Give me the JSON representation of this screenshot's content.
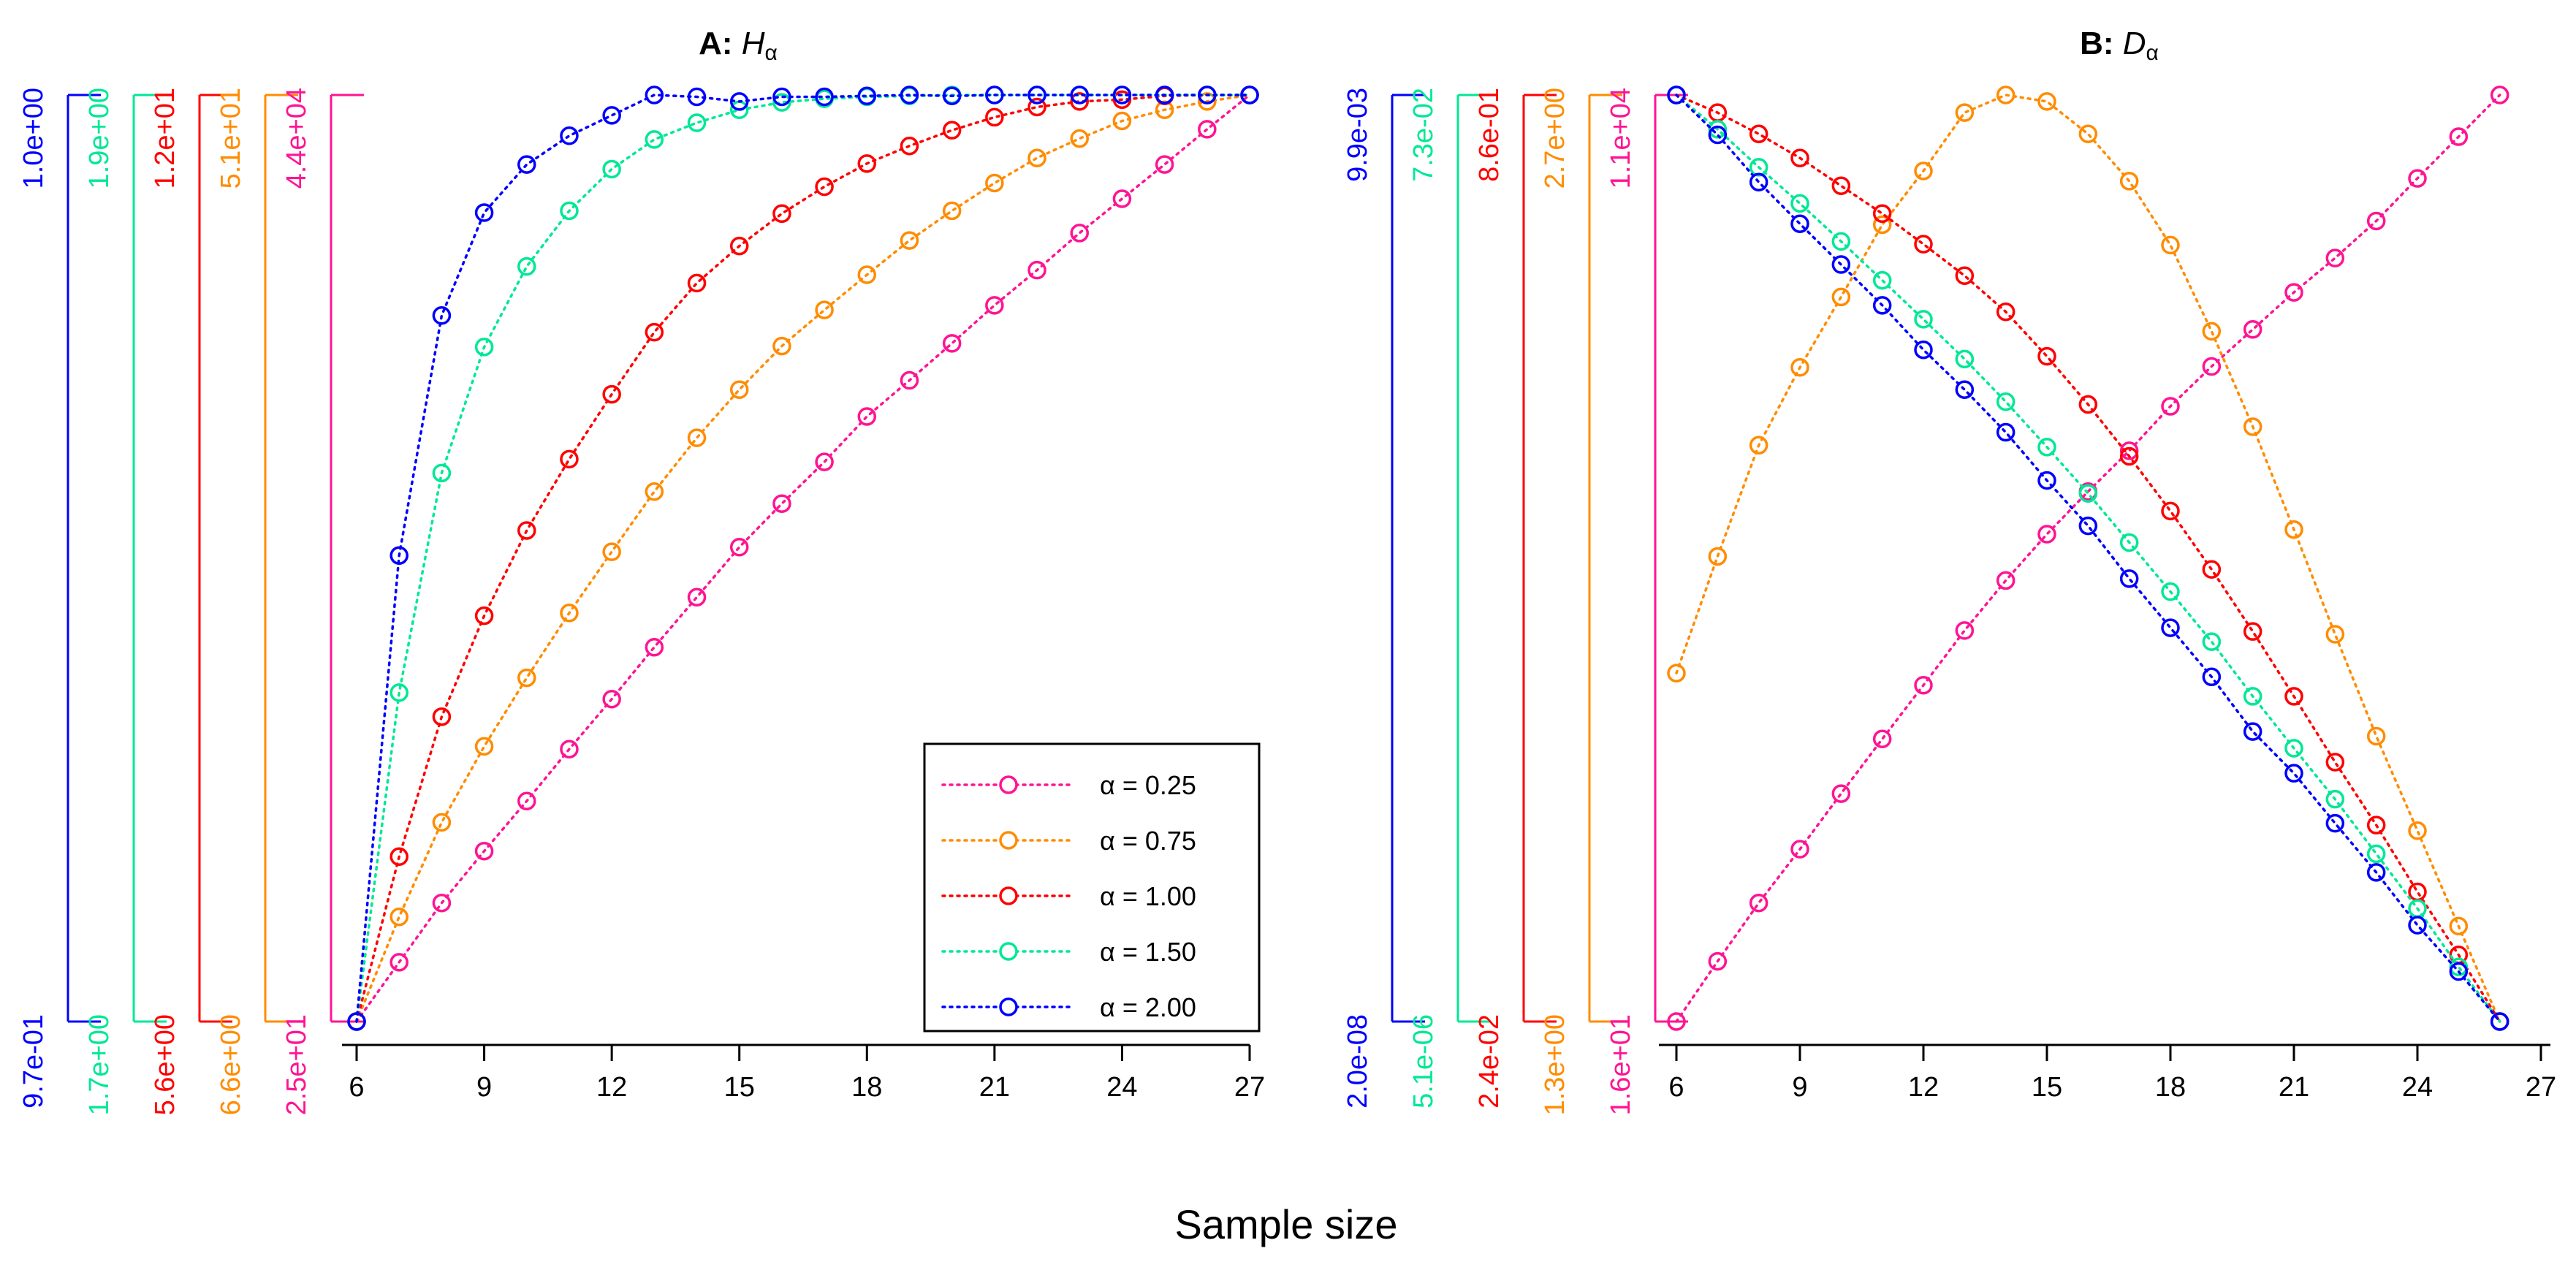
{
  "figure": {
    "xlabel": "Sample size"
  },
  "legend_labels": {
    "0": "α = 0.25",
    "1": "α = 0.75",
    "2": "α = 1.00",
    "3": "α = 1.50",
    "4": "α = 2.00"
  },
  "chart_data": [
    {
      "id": "A",
      "type": "line",
      "title_prefix": "A:",
      "title_symbol": "H",
      "title_subscript": "α",
      "xlabel": "Sample size",
      "xlim": [
        6,
        27
      ],
      "xticks": [
        6,
        9,
        12,
        15,
        18,
        21,
        24,
        27
      ],
      "normalized": true,
      "legend": "bottom-right",
      "series": [
        {
          "name": "α = 0.25",
          "color": "#ff1493",
          "axis_labels": {
            "max": "4.4e+04",
            "min": "2.5e+01"
          },
          "x": [
            6,
            7,
            8,
            9,
            10,
            11,
            12,
            13,
            14,
            15,
            16,
            17,
            18,
            19,
            20,
            21,
            22,
            23,
            24,
            25,
            26,
            27
          ],
          "values": [
            0.0,
            0.064,
            0.128,
            0.184,
            0.238,
            0.294,
            0.348,
            0.404,
            0.458,
            0.512,
            0.559,
            0.604,
            0.653,
            0.692,
            0.732,
            0.773,
            0.811,
            0.851,
            0.888,
            0.925,
            0.963,
            1.0
          ]
        },
        {
          "name": "α = 0.75",
          "color": "#ff8c00",
          "axis_labels": {
            "max": "5.1e+01",
            "min": "6.6e+00"
          },
          "x": [
            6,
            7,
            8,
            9,
            10,
            11,
            12,
            13,
            14,
            15,
            16,
            17,
            18,
            19,
            20,
            21,
            22,
            23,
            24,
            25,
            26,
            27
          ],
          "values": [
            0.0,
            0.113,
            0.215,
            0.297,
            0.371,
            0.441,
            0.507,
            0.572,
            0.63,
            0.682,
            0.729,
            0.768,
            0.806,
            0.843,
            0.875,
            0.905,
            0.932,
            0.953,
            0.972,
            0.984,
            0.993,
            1.0
          ]
        },
        {
          "name": "α = 1.00",
          "color": "#ff0000",
          "axis_labels": {
            "max": "1.2e+01",
            "min": "5.6e+00"
          },
          "x": [
            6,
            7,
            8,
            9,
            10,
            11,
            12,
            13,
            14,
            15,
            16,
            17,
            18,
            19,
            20,
            21,
            22,
            23,
            24,
            25,
            26,
            27
          ],
          "values": [
            0.0,
            0.178,
            0.329,
            0.438,
            0.53,
            0.607,
            0.677,
            0.744,
            0.797,
            0.837,
            0.872,
            0.901,
            0.926,
            0.945,
            0.962,
            0.976,
            0.987,
            0.993,
            0.995,
            0.999,
            1.0,
            1.0
          ]
        },
        {
          "name": "α = 1.50",
          "color": "#00e896",
          "axis_labels": {
            "max": "1.9e+00",
            "min": "1.7e+00"
          },
          "x": [
            6,
            7,
            8,
            9,
            10,
            11,
            12,
            13,
            14,
            15,
            16,
            17,
            18,
            19,
            20,
            21,
            22,
            23,
            24,
            25,
            26,
            27
          ],
          "values": [
            0.0,
            0.355,
            0.592,
            0.728,
            0.815,
            0.875,
            0.92,
            0.952,
            0.97,
            0.984,
            0.992,
            0.996,
            0.998,
            0.999,
            1.0,
            1.0,
            1.0,
            1.0,
            1.0,
            1.0,
            1.0,
            1.0
          ]
        },
        {
          "name": "α = 2.00",
          "color": "#0000ff",
          "axis_labels": {
            "max": "1.0e+00",
            "min": "9.7e-01"
          },
          "x": [
            6,
            7,
            8,
            9,
            10,
            11,
            12,
            13,
            14,
            15,
            16,
            17,
            18,
            19,
            20,
            21,
            22,
            23,
            24,
            25,
            26,
            27
          ],
          "values": [
            0.0,
            0.503,
            0.762,
            0.873,
            0.925,
            0.956,
            0.978,
            1.0,
            0.998,
            0.993,
            0.998,
            0.998,
            0.999,
            1.0,
            0.999,
            1.0,
            1.0,
            1.0,
            1.0,
            1.0,
            1.0,
            1.0
          ]
        }
      ]
    },
    {
      "id": "B",
      "type": "line",
      "title_prefix": "B:",
      "title_symbol": "D",
      "title_subscript": "α",
      "xlabel": "Sample size",
      "xlim": [
        6,
        27
      ],
      "xticks": [
        6,
        9,
        12,
        15,
        18,
        21,
        24,
        27
      ],
      "normalized": true,
      "legend": "none",
      "series": [
        {
          "name": "α = 0.25",
          "color": "#ff1493",
          "axis_labels": {
            "max": "1.1e+04",
            "min": "1.6e+01"
          },
          "x": [
            6,
            7,
            8,
            9,
            10,
            11,
            12,
            13,
            14,
            15,
            16,
            17,
            18,
            19,
            20,
            21,
            22,
            23,
            24,
            25,
            26
          ],
          "values": [
            0.0,
            0.065,
            0.128,
            0.186,
            0.246,
            0.305,
            0.363,
            0.422,
            0.476,
            0.526,
            0.572,
            0.616,
            0.664,
            0.707,
            0.747,
            0.787,
            0.824,
            0.864,
            0.91,
            0.955,
            1.0
          ]
        },
        {
          "name": "α = 0.75",
          "color": "#ff8c00",
          "axis_labels": {
            "max": "2.7e+00",
            "min": "1.3e+00"
          },
          "x": [
            6,
            7,
            8,
            9,
            10,
            11,
            12,
            13,
            14,
            15,
            16,
            17,
            18,
            19,
            20,
            21,
            22,
            23,
            24,
            25,
            26
          ],
          "values": [
            0.376,
            0.502,
            0.622,
            0.706,
            0.782,
            0.86,
            0.918,
            0.981,
            1.0,
            0.993,
            0.958,
            0.907,
            0.838,
            0.745,
            0.642,
            0.531,
            0.418,
            0.308,
            0.206,
            0.103,
            0.0
          ]
        },
        {
          "name": "α = 1.00",
          "color": "#ff0000",
          "axis_labels": {
            "max": "8.6e-01",
            "min": "2.4e-02"
          },
          "x": [
            6,
            7,
            8,
            9,
            10,
            11,
            12,
            13,
            14,
            15,
            16,
            17,
            18,
            19,
            20,
            21,
            22,
            23,
            24,
            25,
            26
          ],
          "values": [
            1.0,
            0.981,
            0.958,
            0.932,
            0.902,
            0.872,
            0.839,
            0.805,
            0.766,
            0.718,
            0.666,
            0.61,
            0.551,
            0.488,
            0.421,
            0.351,
            0.28,
            0.212,
            0.14,
            0.072,
            0.0
          ]
        },
        {
          "name": "α = 1.50",
          "color": "#00e896",
          "axis_labels": {
            "max": "7.3e-02",
            "min": "5.1e-06"
          },
          "x": [
            6,
            7,
            8,
            9,
            10,
            11,
            12,
            13,
            14,
            15,
            16,
            17,
            18,
            19,
            20,
            21,
            22,
            23,
            24,
            25,
            26
          ],
          "values": [
            1.0,
            0.963,
            0.922,
            0.883,
            0.842,
            0.8,
            0.758,
            0.715,
            0.669,
            0.62,
            0.57,
            0.517,
            0.464,
            0.41,
            0.351,
            0.295,
            0.24,
            0.181,
            0.122,
            0.059,
            0.0
          ]
        },
        {
          "name": "α = 2.00",
          "color": "#0000ff",
          "axis_labels": {
            "max": "9.9e-03",
            "min": "2.0e-08"
          },
          "x": [
            6,
            7,
            8,
            9,
            10,
            11,
            12,
            13,
            14,
            15,
            16,
            17,
            18,
            19,
            20,
            21,
            22,
            23,
            24,
            25,
            26
          ],
          "values": [
            1.0,
            0.957,
            0.906,
            0.861,
            0.817,
            0.773,
            0.725,
            0.682,
            0.636,
            0.584,
            0.535,
            0.478,
            0.425,
            0.372,
            0.313,
            0.268,
            0.214,
            0.161,
            0.104,
            0.054,
            0.0
          ]
        }
      ]
    }
  ]
}
